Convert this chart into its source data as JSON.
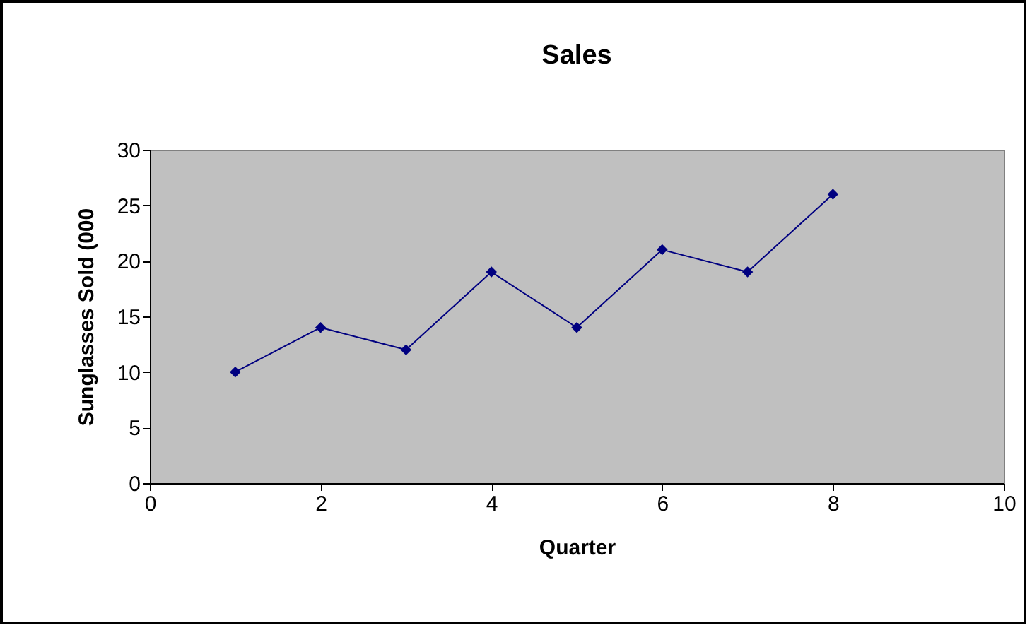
{
  "chart_data": {
    "type": "line",
    "title": "Sales",
    "xlabel": "Quarter",
    "ylabel": "Sunglasses Sold (000",
    "x": [
      1,
      2,
      3,
      4,
      5,
      6,
      7,
      8
    ],
    "series": [
      {
        "color": "#000080",
        "values": [
          10,
          14,
          12,
          19,
          14,
          21,
          19,
          26
        ]
      }
    ],
    "xlim": [
      0,
      10
    ],
    "xticks": [
      0,
      2,
      4,
      6,
      8,
      10
    ],
    "ylim": [
      0,
      30
    ],
    "yticks": [
      0,
      5,
      10,
      15,
      20,
      25,
      30
    ],
    "grid": false,
    "legend": false,
    "marker": "diamond",
    "line_style": "solid"
  }
}
